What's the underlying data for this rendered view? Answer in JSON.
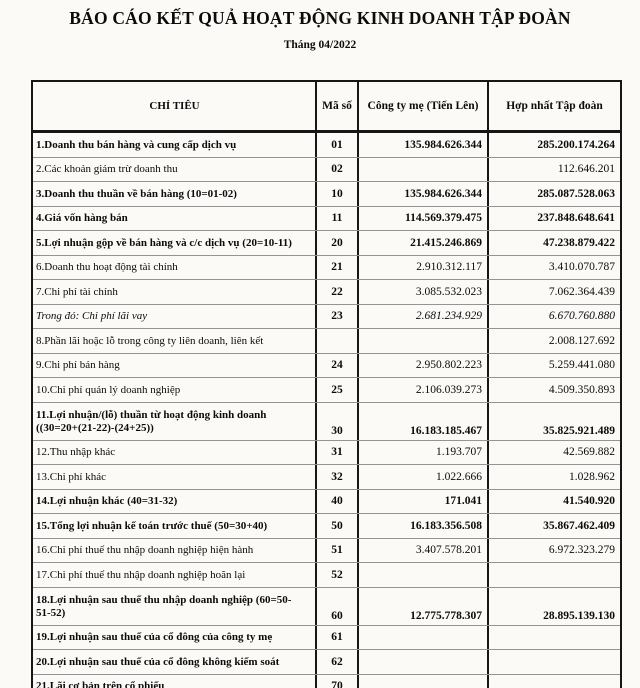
{
  "page": {
    "title": "BÁO CÁO KẾT QUẢ HOẠT ĐỘNG KINH DOANH TẬP ĐOÀN",
    "subtitle": "Tháng 04/2022"
  },
  "table": {
    "columns": [
      "CHỈ TIÊU",
      "Mã số",
      "Công ty mẹ (Tiến Lên)",
      "Hợp nhất Tập đoàn"
    ],
    "rows": [
      {
        "label": "1.Doanh thu bán hàng và cung cấp dịch vụ",
        "code": "01",
        "parent_value": "135.984.626.344",
        "consolidated_value": "285.200.174.264",
        "bold": true
      },
      {
        "label": "2.Các khoản giảm trừ doanh thu",
        "code": "02",
        "parent_value": "",
        "consolidated_value": "112.646.201"
      },
      {
        "label": "3.Doanh thu thuần về bán hàng (10=01-02)",
        "code": "10",
        "parent_value": "135.984.626.344",
        "consolidated_value": "285.087.528.063",
        "bold": true
      },
      {
        "label": "4.Giá vốn hàng bán",
        "code": "11",
        "parent_value": "114.569.379.475",
        "consolidated_value": "237.848.648.641",
        "bold": true
      },
      {
        "label": "5.Lợi nhuận gộp về bán hàng và c/c dịch vụ (20=10-11)",
        "code": "20",
        "parent_value": "21.415.246.869",
        "consolidated_value": "47.238.879.422",
        "bold": true
      },
      {
        "label": "6.Doanh thu hoạt động tài chính",
        "code": "21",
        "parent_value": "2.910.312.117",
        "consolidated_value": "3.410.070.787"
      },
      {
        "label": "7.Chi phí tài chính",
        "code": "22",
        "parent_value": "3.085.532.023",
        "consolidated_value": "7.062.364.439"
      },
      {
        "label": "Trong đó: Chi phí lãi vay",
        "code": "23",
        "parent_value": "2.681.234.929",
        "consolidated_value": "6.670.760.880",
        "italic": true
      },
      {
        "label": "8.Phần lãi hoặc lỗ trong công ty liên doanh, liên kết",
        "code": "",
        "parent_value": "",
        "consolidated_value": "2.008.127.692"
      },
      {
        "label": "9.Chi phí bán hàng",
        "code": "24",
        "parent_value": "2.950.802.223",
        "consolidated_value": "5.259.441.080"
      },
      {
        "label": "10.Chi phí quản lý doanh nghiệp",
        "code": "25",
        "parent_value": "2.106.039.273",
        "consolidated_value": "4.509.350.893"
      },
      {
        "label": "11.Lợi nhuận/(lỗ) thuần từ hoạt động kinh doanh",
        "label2": "((30=20+(21-22)-(24+25))",
        "code": "30",
        "parent_value": "16.183.185.467",
        "consolidated_value": "35.825.921.489",
        "bold": true,
        "tall": true
      },
      {
        "label": "12.Thu nhập khác",
        "code": "31",
        "parent_value": "1.193.707",
        "consolidated_value": "42.569.882"
      },
      {
        "label": "13.Chi phí khác",
        "code": "32",
        "parent_value": "1.022.666",
        "consolidated_value": "1.028.962"
      },
      {
        "label": "14.Lợi nhuận khác (40=31-32)",
        "code": "40",
        "parent_value": "171.041",
        "consolidated_value": "41.540.920",
        "bold": true
      },
      {
        "label": "15.Tổng lợi nhuận kế toán trước thuế (50=30+40)",
        "code": "50",
        "parent_value": "16.183.356.508",
        "consolidated_value": "35.867.462.409",
        "bold": true
      },
      {
        "label": "16.Chi phí thuế thu nhập doanh nghiệp hiện hành",
        "code": "51",
        "parent_value": "3.407.578.201",
        "consolidated_value": "6.972.323.279"
      },
      {
        "label": "17.Chi phí thuế thu nhập doanh nghiệp hoãn lại",
        "code": "52",
        "parent_value": "",
        "consolidated_value": ""
      },
      {
        "label": "18.Lợi nhuận sau thuế thu nhập doanh nghiệp (60=50-",
        "label2": "51-52)",
        "code": "60",
        "parent_value": "12.775.778.307",
        "consolidated_value": "28.895.139.130",
        "bold": true,
        "tall": true
      },
      {
        "label": "19.Lợi nhuận sau thuế của cổ đông của công ty mẹ",
        "code": "61",
        "parent_value": "",
        "consolidated_value": "",
        "bold": true
      },
      {
        "label": "20.Lợi nhuận sau thuế của cổ đông không kiểm soát",
        "code": "62",
        "parent_value": "",
        "consolidated_value": "",
        "bold": true
      },
      {
        "label": "21.Lãi cơ bản trên cổ phiếu",
        "code": "70",
        "parent_value": "",
        "consolidated_value": "",
        "bold": true
      }
    ]
  }
}
